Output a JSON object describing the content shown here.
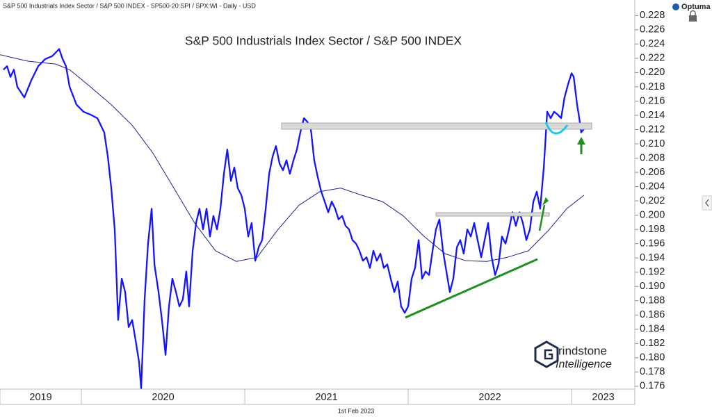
{
  "header": "S&P 500 Industrials Index Sector / S&P 500 INDEX - SP500-20:SPI / SPX:WI - Daily - USD",
  "brand": "Optuma",
  "logo": {
    "line1": "rindstone",
    "line2": "Intelligence"
  },
  "footer_date": "1st Feb 2023",
  "chart_data": {
    "type": "line",
    "title": "S&P 500 Industrials Index Sector / S&P 500 INDEX",
    "xlim": [
      2019.502,
      2023.387
    ],
    "xticks": [
      2019,
      2020,
      2021,
      2022,
      2023
    ],
    "ylim": [
      0.1756,
      0.2292
    ],
    "yticks": [
      0.176,
      0.178,
      {
        "value": 0.18,
        "label": "0.180"
      },
      0.182,
      0.184,
      0.186,
      0.188,
      {
        "value": 0.19,
        "label": "0.190"
      },
      0.192,
      0.194,
      0.196,
      0.198,
      {
        "value": 0.2,
        "label": "0.200"
      },
      0.202,
      0.204,
      0.206,
      0.208,
      {
        "value": 0.21,
        "label": "0.210"
      },
      0.212,
      0.214,
      0.216,
      0.218,
      {
        "value": 0.22,
        "label": "0.220"
      },
      0.222,
      0.224,
      0.226,
      0.228
    ],
    "series": [
      {
        "color": "#1f1f8c",
        "width": 1,
        "x": [
          2019.502,
          2019.672,
          2019.842,
          2019.928,
          2020.055,
          2020.183,
          2020.311,
          2020.438,
          2020.566,
          2020.693,
          2020.821,
          2020.949,
          2021.076,
          2021.204,
          2021.332,
          2021.459,
          2021.587,
          2021.715,
          2021.842,
          2021.97,
          2022.098,
          2022.225,
          2022.353,
          2022.481,
          2022.608,
          2022.736,
          2022.864,
          2022.97,
          2023.076
        ],
        "values": [
          0.2225,
          0.2216,
          0.2212,
          0.2204,
          0.218,
          0.2155,
          0.2126,
          0.2087,
          0.2038,
          0.1989,
          0.195,
          0.1935,
          0.1941,
          0.198,
          0.2014,
          0.2033,
          0.2038,
          0.2028,
          0.2019,
          0.1999,
          0.197,
          0.1946,
          0.1936,
          0.1935,
          0.1941,
          0.195,
          0.198,
          0.2009,
          0.2028
        ]
      },
      {
        "color": "#1414ff",
        "width": 2.3,
        "x": [
          2019.523,
          2019.545,
          2019.566,
          2019.587,
          2019.608,
          2019.651,
          2019.693,
          2019.736,
          2019.779,
          2019.821,
          2019.864,
          2019.885,
          2019.906,
          2019.928,
          2019.97,
          2020.013,
          2020.055,
          2020.098,
          2020.14,
          2020.162,
          2020.183,
          2020.204,
          2020.217,
          2020.225,
          2020.247,
          2020.268,
          2020.289,
          2020.311,
          2020.332,
          2020.353,
          2020.366,
          2020.387,
          2020.408,
          2020.43,
          2020.447,
          2020.472,
          2020.493,
          2020.515,
          2020.536,
          2020.557,
          2020.579,
          2020.6,
          2020.621,
          2020.642,
          2020.659,
          2020.681,
          2020.702,
          2020.723,
          2020.745,
          2020.766,
          2020.787,
          2020.808,
          2020.83,
          2020.851,
          2020.872,
          2020.893,
          2020.915,
          2020.936,
          2020.957,
          2020.979,
          2021.0,
          2021.021,
          2021.042,
          2021.064,
          2021.085,
          2021.106,
          2021.128,
          2021.149,
          2021.17,
          2021.191,
          2021.213,
          2021.234,
          2021.255,
          2021.276,
          2021.298,
          2021.319,
          2021.34,
          2021.362,
          2021.383,
          2021.404,
          2021.425,
          2021.447,
          2021.468,
          2021.489,
          2021.511,
          2021.532,
          2021.553,
          2021.574,
          2021.596,
          2021.617,
          2021.638,
          2021.659,
          2021.681,
          2021.702,
          2021.723,
          2021.745,
          2021.766,
          2021.787,
          2021.808,
          2021.83,
          2021.851,
          2021.872,
          2021.893,
          2021.915,
          2021.936,
          2021.957,
          2021.979,
          2022.0,
          2022.021,
          2022.042,
          2022.064,
          2022.085,
          2022.106,
          2022.128,
          2022.149,
          2022.17,
          2022.191,
          2022.213,
          2022.234,
          2022.255,
          2022.276,
          2022.298,
          2022.319,
          2022.34,
          2022.362,
          2022.383,
          2022.404,
          2022.425,
          2022.447,
          2022.468,
          2022.489,
          2022.511,
          2022.532,
          2022.553,
          2022.574,
          2022.596,
          2022.617,
          2022.638,
          2022.659,
          2022.681,
          2022.702,
          2022.723,
          2022.745,
          2022.766,
          2022.787,
          2022.808,
          2022.83,
          2022.851,
          2022.872,
          2022.893,
          2022.915,
          2022.936,
          2022.957,
          2022.979,
          2023.0,
          2023.013,
          2023.034,
          2023.047,
          2023.059,
          2023.076
        ],
        "values": [
          0.2204,
          0.2209,
          0.2194,
          0.2204,
          0.218,
          0.2165,
          0.2189,
          0.2209,
          0.2219,
          0.2223,
          0.2233,
          0.2219,
          0.2209,
          0.218,
          0.2155,
          0.2145,
          0.2141,
          0.2136,
          0.2116,
          0.2082,
          0.2038,
          0.198,
          0.1902,
          0.1853,
          0.1911,
          0.1892,
          0.1843,
          0.1853,
          0.1824,
          0.1794,
          0.1757,
          0.1882,
          0.196,
          0.2009,
          0.1931,
          0.1892,
          0.1853,
          0.1804,
          0.1872,
          0.1911,
          0.1892,
          0.1872,
          0.1882,
          0.1921,
          0.1872,
          0.195,
          0.1989,
          0.2009,
          0.198,
          0.2009,
          0.197,
          0.1999,
          0.198,
          0.2009,
          0.2058,
          0.2092,
          0.2048,
          0.2067,
          0.2038,
          0.2028,
          0.2009,
          0.197,
          0.1989,
          0.1936,
          0.1955,
          0.1965,
          0.2009,
          0.2058,
          0.2082,
          0.2097,
          0.2072,
          0.2063,
          0.2077,
          0.2058,
          0.2077,
          0.2092,
          0.2116,
          0.2136,
          0.2131,
          0.2121,
          0.2077,
          0.2053,
          0.2033,
          0.2019,
          0.2004,
          0.2019,
          0.2009,
          0.1994,
          0.1999,
          0.1985,
          0.198,
          0.1965,
          0.196,
          0.195,
          0.1936,
          0.1941,
          0.1926,
          0.195,
          0.1936,
          0.1946,
          0.1926,
          0.1931,
          0.1911,
          0.1892,
          0.1907,
          0.1872,
          0.1863,
          0.1872,
          0.1911,
          0.1926,
          0.1965,
          0.1911,
          0.1921,
          0.1916,
          0.195,
          0.198,
          0.1994,
          0.195,
          0.1921,
          0.1892,
          0.1911,
          0.1955,
          0.1965,
          0.1946,
          0.198,
          0.197,
          0.1989,
          0.1965,
          0.1941,
          0.1965,
          0.1989,
          0.1941,
          0.1916,
          0.1931,
          0.197,
          0.196,
          0.198,
          0.2004,
          0.1985,
          0.2004,
          0.1989,
          0.1965,
          0.198,
          0.2019,
          0.2033,
          0.2009,
          0.2067,
          0.2145,
          0.2136,
          0.2145,
          0.2141,
          0.2136,
          0.2165,
          0.2184,
          0.2199,
          0.2194,
          0.2155,
          0.2136,
          0.2116,
          0.2121
        ]
      }
    ]
  }
}
